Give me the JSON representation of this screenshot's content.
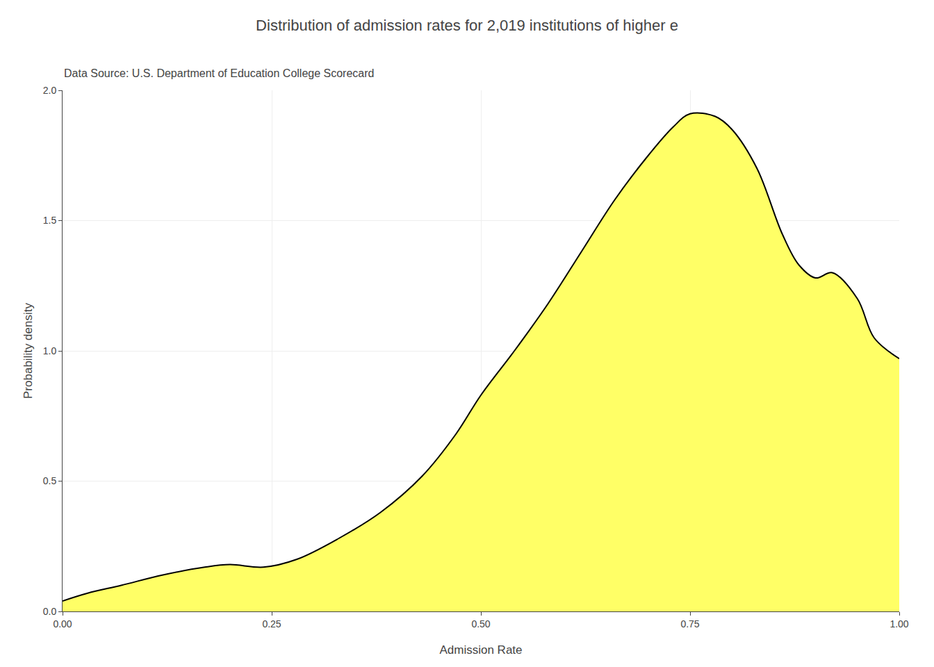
{
  "chart_data": {
    "type": "area",
    "title": "Distribution of admission rates for 2,019 institutions of higher e",
    "subtitle": "Data Source: U.S. Department of Education College Scorecard",
    "xlabel": "Admission Rate",
    "ylabel": "Probability density",
    "x": [
      0.0,
      0.03,
      0.07,
      0.12,
      0.17,
      0.2,
      0.24,
      0.28,
      0.33,
      0.38,
      0.43,
      0.47,
      0.5,
      0.54,
      0.58,
      0.62,
      0.66,
      0.7,
      0.73,
      0.75,
      0.78,
      0.8,
      0.83,
      0.86,
      0.88,
      0.9,
      0.92,
      0.95,
      0.97,
      1.0
    ],
    "values": [
      0.04,
      0.07,
      0.1,
      0.14,
      0.17,
      0.18,
      0.17,
      0.2,
      0.28,
      0.38,
      0.52,
      0.68,
      0.83,
      1.0,
      1.18,
      1.38,
      1.58,
      1.75,
      1.86,
      1.91,
      1.9,
      1.85,
      1.7,
      1.45,
      1.33,
      1.28,
      1.3,
      1.2,
      1.05,
      0.97
    ],
    "color": "#ffff66",
    "xlim": [
      0.0,
      1.0
    ],
    "ylim": [
      0.0,
      2.0
    ],
    "xticks": [
      {
        "value": 0.0,
        "label": "0.00"
      },
      0.25,
      {
        "value": 0.5,
        "label": "0.50"
      },
      0.75,
      {
        "value": 1.0,
        "label": "1.00"
      }
    ],
    "yticks": [
      {
        "value": 0.0,
        "label": "0.0"
      },
      0.5,
      {
        "value": 1.0,
        "label": "1.0"
      },
      1.5,
      {
        "value": 2.0,
        "label": "2.0"
      }
    ],
    "grid": true
  }
}
